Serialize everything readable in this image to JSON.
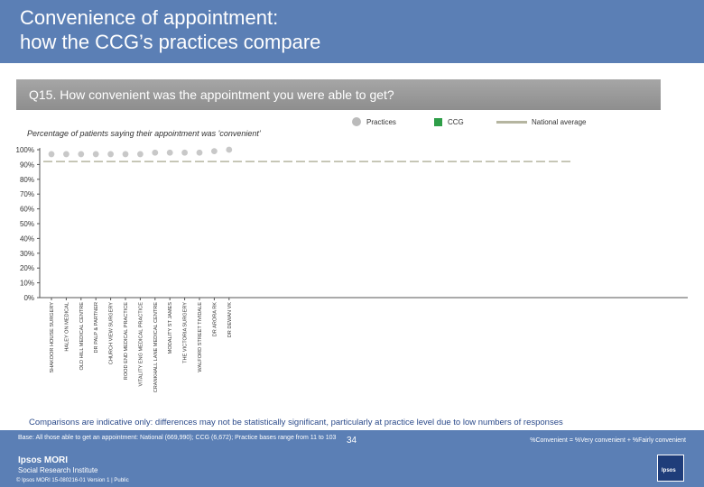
{
  "header": {
    "title_line1": "Convenience of appointment:",
    "title_line2": "how the CCG’s practices compare"
  },
  "question": "Q15. How convenient was the appointment you were able to get?",
  "legend": {
    "practices": "Practices",
    "ccg": "CCG",
    "national": "National average"
  },
  "subtitle": "Percentage of patients saying their appointment was 'convenient'",
  "chart_data": {
    "type": "bar",
    "ylim": [
      0,
      100
    ],
    "yticks": [
      "0%",
      "10%",
      "20%",
      "30%",
      "40%",
      "50%",
      "60%",
      "70%",
      "80%",
      "90%",
      "100%"
    ],
    "categories": [
      "SHAKOOR HOUSE SURGERY",
      "HALEY ON MEDICAL",
      "OLD HILL MEDICAL CENTRE",
      "DR PALP & PARTNER",
      "CHURCH VIEW SURGERY",
      "ROOD END MEDICAL PRACTICE",
      "VITALITY ENG MEDICAL PRACTICE",
      "CRANKHALL LANE MEDICAL CENTRE",
      "MODALITY ST JAMES",
      "THE VICTORIA SURGERY",
      "WALFORD STREET TIVIDALE",
      "DR ARORA RK",
      "DR DEWAN VK"
    ],
    "practice_values": [
      97,
      97,
      97,
      97,
      97,
      97,
      97,
      98,
      98,
      98,
      98,
      99,
      100
    ],
    "ccg_value": 92,
    "national_value": 92,
    "colors": {
      "practices": "#c8c8c8",
      "ccg": "#2e9e48",
      "national": "#b5b5a0"
    }
  },
  "footer": {
    "comparison": "Comparisons are indicative only: differences may not be statistically significant, particularly at practice level due to low numbers of responses",
    "base": "Base: All those able to get an appointment: National (669,990); CCG (6,672); Practice bases range from 11 to 103",
    "definition": "%Convenient = %Very convenient + %Fairly convenient",
    "page_number": "34",
    "logo_line1": "Ipsos MORI",
    "logo_line2": "Social Research Institute",
    "copyright": "© Ipsos MORI   15-080216-01 Version 1 | Public",
    "ipsos_badge": "Ipsos"
  }
}
